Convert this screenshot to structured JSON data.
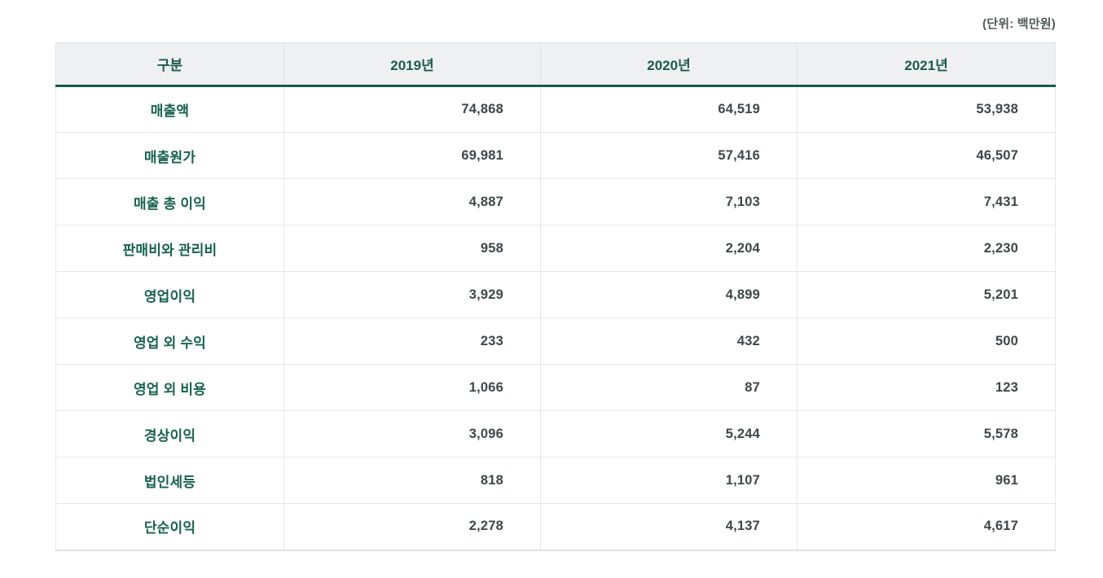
{
  "page": {
    "unit_label": "(단위: 백만원)"
  },
  "colors": {
    "header_bg": "#eef0f1",
    "header_text": "#1c5b50",
    "accent_border": "#155a4e",
    "label_text": "#17624f",
    "number_text": "#3f4749",
    "grid_line": "#e4e7e9"
  },
  "chart_data": {
    "type": "table",
    "title": "",
    "unit": "(단위: 백만원)",
    "columns": [
      "구분",
      "2019년",
      "2020년",
      "2021년"
    ],
    "rows": [
      {
        "label": "매출액",
        "values": [
          74868,
          64519,
          53938
        ]
      },
      {
        "label": "매출원가",
        "values": [
          69981,
          57416,
          46507
        ]
      },
      {
        "label": "매출 총 이익",
        "values": [
          4887,
          7103,
          7431
        ]
      },
      {
        "label": "판매비와 관리비",
        "values": [
          958,
          2204,
          2230
        ]
      },
      {
        "label": "영업이익",
        "values": [
          3929,
          4899,
          5201
        ]
      },
      {
        "label": "영업 외 수익",
        "values": [
          233,
          432,
          500
        ]
      },
      {
        "label": "영업 외 비용",
        "values": [
          1066,
          87,
          123
        ]
      },
      {
        "label": "경상이익",
        "values": [
          3096,
          5244,
          5578
        ]
      },
      {
        "label": "법인세등",
        "values": [
          818,
          1107,
          961
        ]
      },
      {
        "label": "단순이익",
        "values": [
          2278,
          4137,
          4617
        ]
      }
    ]
  }
}
